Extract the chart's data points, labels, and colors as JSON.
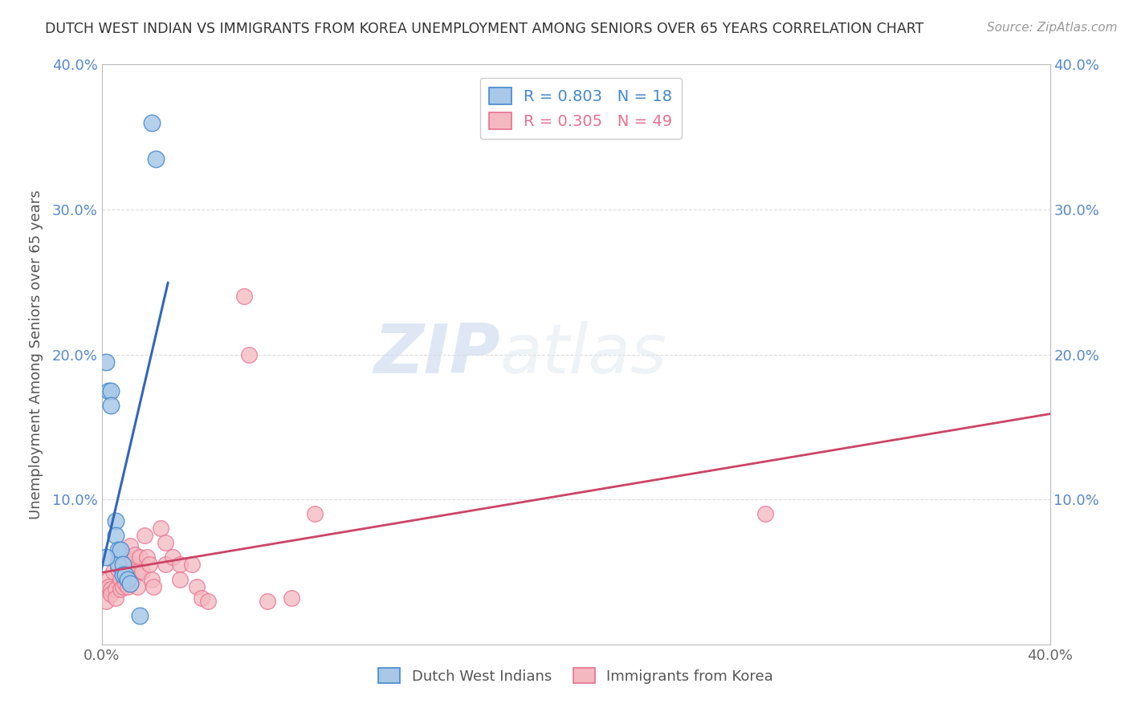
{
  "title": "DUTCH WEST INDIAN VS IMMIGRANTS FROM KOREA UNEMPLOYMENT AMONG SENIORS OVER 65 YEARS CORRELATION CHART",
  "source": "Source: ZipAtlas.com",
  "ylabel": "Unemployment Among Seniors over 65 years",
  "xlim": [
    0.0,
    0.4
  ],
  "ylim": [
    0.0,
    0.4
  ],
  "blue_R": 0.803,
  "blue_N": 18,
  "pink_R": 0.305,
  "pink_N": 49,
  "blue_fill": "#a8c8e8",
  "blue_edge": "#4488cc",
  "pink_fill": "#f4b8c0",
  "pink_edge": "#e87090",
  "blue_line": "#3366bb",
  "pink_line": "#cc4466",
  "blue_scatter": [
    [
      0.002,
      0.195
    ],
    [
      0.003,
      0.175
    ],
    [
      0.004,
      0.175
    ],
    [
      0.004,
      0.165
    ],
    [
      0.006,
      0.085
    ],
    [
      0.006,
      0.075
    ],
    [
      0.007,
      0.065
    ],
    [
      0.007,
      0.055
    ],
    [
      0.008,
      0.065
    ],
    [
      0.009,
      0.055
    ],
    [
      0.009,
      0.048
    ],
    [
      0.01,
      0.048
    ],
    [
      0.011,
      0.045
    ],
    [
      0.012,
      0.042
    ],
    [
      0.016,
      0.02
    ],
    [
      0.021,
      0.36
    ],
    [
      0.023,
      0.335
    ],
    [
      0.002,
      0.06
    ]
  ],
  "pink_scatter": [
    [
      0.001,
      0.038
    ],
    [
      0.002,
      0.03
    ],
    [
      0.003,
      0.045
    ],
    [
      0.003,
      0.04
    ],
    [
      0.004,
      0.038
    ],
    [
      0.004,
      0.035
    ],
    [
      0.005,
      0.05
    ],
    [
      0.006,
      0.038
    ],
    [
      0.006,
      0.032
    ],
    [
      0.007,
      0.058
    ],
    [
      0.007,
      0.052
    ],
    [
      0.008,
      0.045
    ],
    [
      0.008,
      0.038
    ],
    [
      0.009,
      0.062
    ],
    [
      0.009,
      0.04
    ],
    [
      0.01,
      0.055
    ],
    [
      0.01,
      0.042
    ],
    [
      0.011,
      0.058
    ],
    [
      0.011,
      0.04
    ],
    [
      0.012,
      0.068
    ],
    [
      0.012,
      0.05
    ],
    [
      0.013,
      0.055
    ],
    [
      0.013,
      0.045
    ],
    [
      0.014,
      0.062
    ],
    [
      0.015,
      0.05
    ],
    [
      0.015,
      0.04
    ],
    [
      0.016,
      0.06
    ],
    [
      0.017,
      0.05
    ],
    [
      0.018,
      0.075
    ],
    [
      0.019,
      0.06
    ],
    [
      0.02,
      0.055
    ],
    [
      0.021,
      0.045
    ],
    [
      0.022,
      0.04
    ],
    [
      0.025,
      0.08
    ],
    [
      0.027,
      0.07
    ],
    [
      0.027,
      0.055
    ],
    [
      0.03,
      0.06
    ],
    [
      0.033,
      0.055
    ],
    [
      0.033,
      0.045
    ],
    [
      0.038,
      0.055
    ],
    [
      0.04,
      0.04
    ],
    [
      0.042,
      0.032
    ],
    [
      0.045,
      0.03
    ],
    [
      0.06,
      0.24
    ],
    [
      0.062,
      0.2
    ],
    [
      0.07,
      0.03
    ],
    [
      0.08,
      0.032
    ],
    [
      0.09,
      0.09
    ],
    [
      0.28,
      0.09
    ]
  ],
  "watermark_zip": "ZIP",
  "watermark_atlas": "atlas",
  "background_color": "#ffffff",
  "grid_color": "#dddddd"
}
